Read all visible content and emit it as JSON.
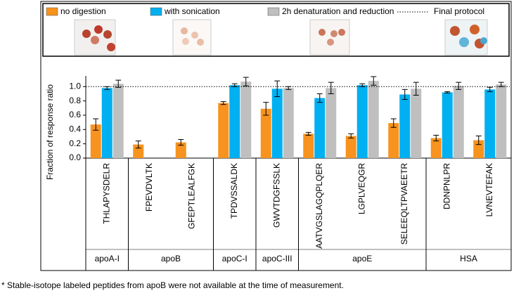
{
  "chart_data": {
    "type": "bar",
    "y_label": "Fraction of response ratio",
    "groups": [
      {
        "label": "apoA-I",
        "categories": [
          "THLAPYSDELR"
        ]
      },
      {
        "label": "apoB",
        "categories": [
          "FPEVDVLTK",
          "GFEPTLEALFGK"
        ]
      },
      {
        "label": "apoC-I",
        "categories": [
          "TPDVSSALDK"
        ]
      },
      {
        "label": "apoC-III",
        "categories": [
          "GWVTDGFSSLK"
        ]
      },
      {
        "label": "apoE",
        "categories": [
          "AATVGSLAGQPLQER",
          "LGPLVEQGR",
          "SELEEQLTPVAEETR"
        ]
      },
      {
        "label": "HSA",
        "categories": [
          "DDNPNLPR",
          "LVNEVTEFAK"
        ]
      }
    ],
    "series": [
      {
        "name": "no digestion",
        "color": "#f7931e",
        "values": [
          0.47,
          0.19,
          0.22,
          0.77,
          0.69,
          0.34,
          0.31,
          0.49,
          0.28,
          0.25
        ],
        "errors": [
          0.08,
          0.05,
          0.04,
          0.02,
          0.09,
          0.02,
          0.03,
          0.06,
          0.04,
          0.06
        ]
      },
      {
        "name": "with sonication",
        "color": "#00b0f0",
        "values": [
          0.98,
          null,
          null,
          1.02,
          0.97,
          0.84,
          1.02,
          0.89,
          0.92,
          0.96
        ],
        "errors": [
          0.02,
          null,
          null,
          0.02,
          0.11,
          0.06,
          0.02,
          0.07,
          0.01,
          0.03
        ]
      },
      {
        "name": "2h denaturation and reduction",
        "color": "#bfbfbf",
        "values": [
          1.04,
          null,
          null,
          1.07,
          0.98,
          0.98,
          1.08,
          0.97,
          1.01,
          1.03
        ],
        "errors": [
          0.05,
          null,
          null,
          0.06,
          0.02,
          0.08,
          0.06,
          0.09,
          0.05,
          0.03
        ]
      }
    ],
    "reference_line": {
      "name": "Final protocol",
      "value": 1.0
    },
    "ylim": [
      0,
      1.15
    ],
    "yticks": [
      {
        "value": 0,
        "label": "0.0"
      },
      {
        "value": 0.2,
        "label": "0.2"
      },
      {
        "value": 0.4,
        "label": "0.4"
      },
      {
        "value": 0.6,
        "label": "0.6"
      },
      {
        "value": 0.8,
        "label": "0.8"
      },
      {
        "value": 1.0,
        "label": "1.0"
      }
    ],
    "footnote": "* Stable-isotope labeled peptides from apoB were not available at the time of measurement."
  }
}
